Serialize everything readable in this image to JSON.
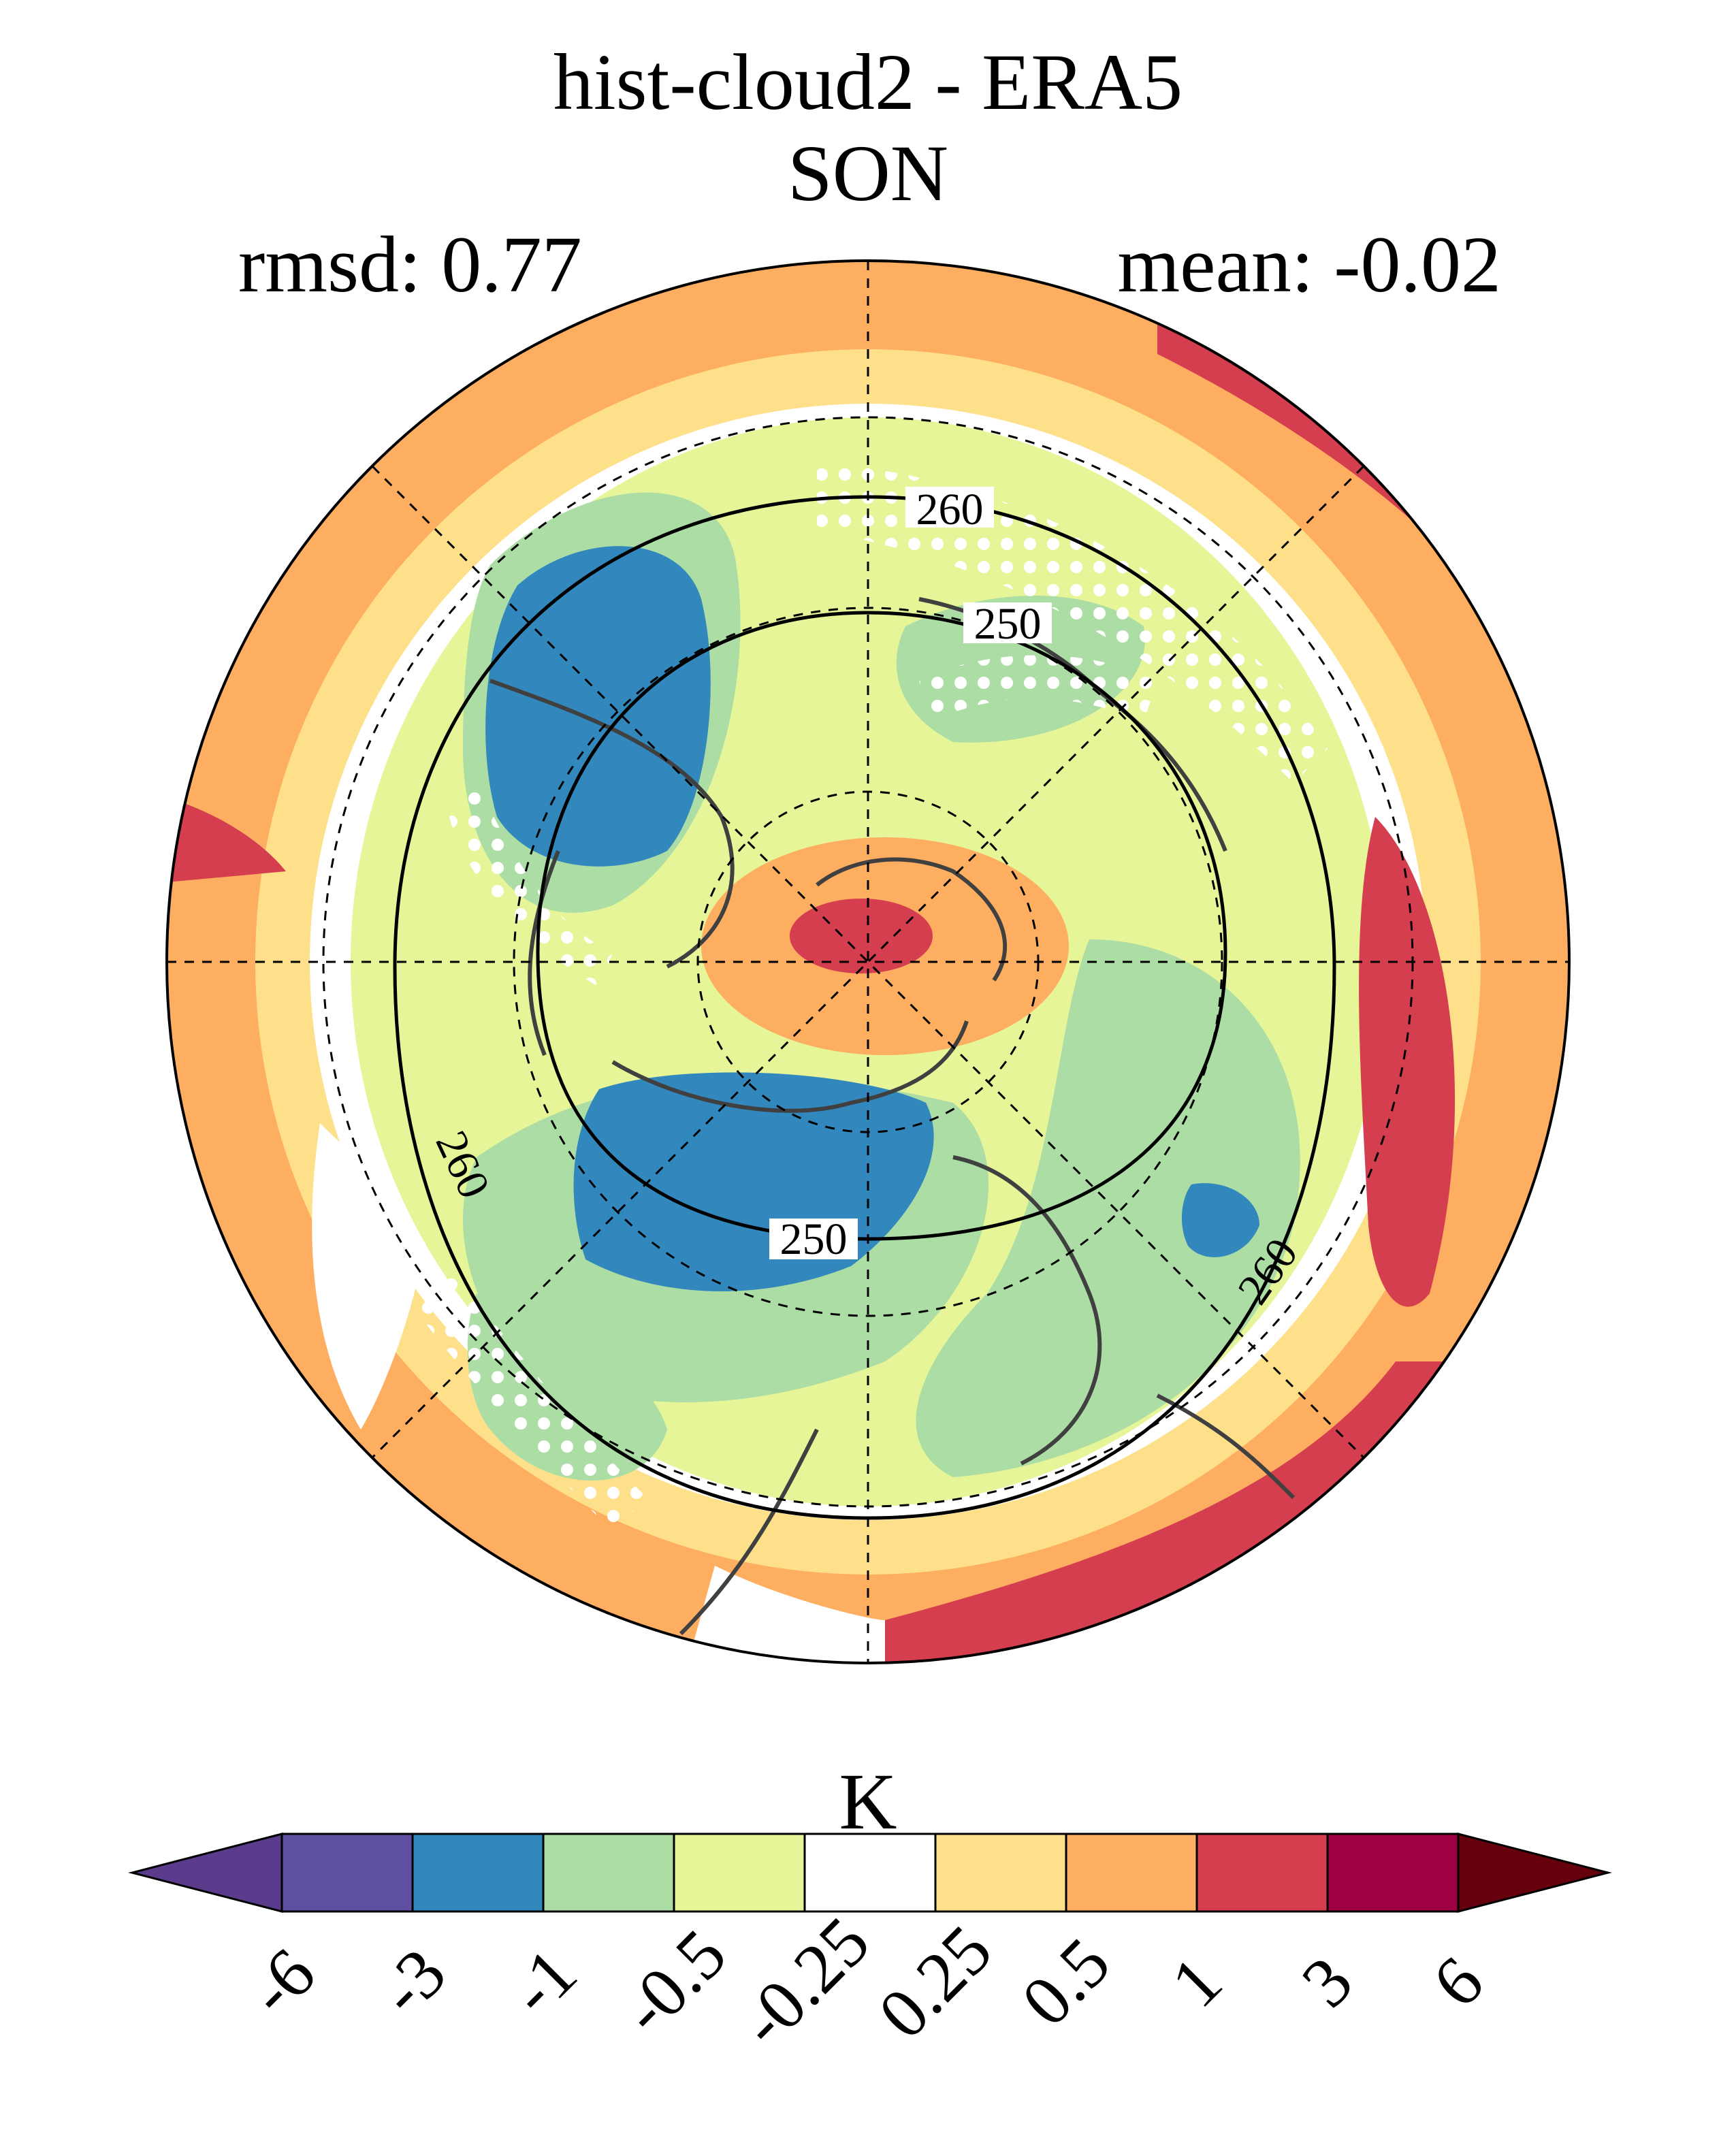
{
  "title": {
    "line1": "hist-cloud2 - ERA5",
    "line2": "SON"
  },
  "stats": {
    "rmsd": "rmsd: 0.77",
    "mean": "mean: -0.02"
  },
  "map": {
    "projection": "north polar stereographic",
    "contour_labels": [
      "260",
      "250",
      "250",
      "260",
      "260",
      "260"
    ],
    "stippling": "white dots mark regions",
    "graticule": "dashed"
  },
  "colorbar": {
    "unit": "K",
    "ticks": [
      "-6",
      "-3",
      "-1",
      "-0.5",
      "-0.25",
      "0.25",
      "0.5",
      "1",
      "3",
      "6"
    ],
    "colors": [
      "#5b3c8c",
      "#5e4fa2",
      "#3288bd",
      "#abdda4",
      "#e6f598",
      "#ffffff",
      "#fee08b",
      "#fdae61",
      "#d53e4f",
      "#9e0142",
      "#67000d"
    ]
  }
}
